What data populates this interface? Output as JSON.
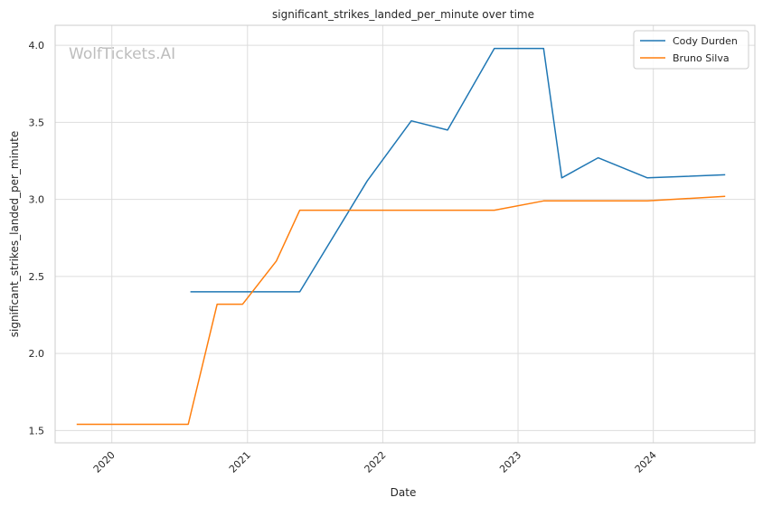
{
  "chart_data": {
    "type": "line",
    "title": "significant_strikes_landed_per_minute over time",
    "xlabel": "Date",
    "ylabel": "significant_strikes_landed_per_minute",
    "watermark": "WolfTickets.AI",
    "x_type": "date",
    "xlim": [
      "2019-08-01",
      "2024-10-01"
    ],
    "ylim": [
      1.42,
      4.13
    ],
    "x_ticks": [
      {
        "label": "2020",
        "date": "2020-01-01"
      },
      {
        "label": "2021",
        "date": "2021-01-01"
      },
      {
        "label": "2022",
        "date": "2022-01-01"
      },
      {
        "label": "2023",
        "date": "2023-01-01"
      },
      {
        "label": "2024",
        "date": "2024-01-01"
      }
    ],
    "y_ticks": [
      "1.5",
      "2.0",
      "2.5",
      "3.0",
      "3.5",
      "4.0"
    ],
    "grid": true,
    "legend_position": "top-right",
    "series": [
      {
        "name": "Cody Durden",
        "color": "#1f77b4",
        "points": [
          {
            "x": "2020-07-31",
            "y": 2.4
          },
          {
            "x": "2021-05-22",
            "y": 2.4
          },
          {
            "x": "2021-11-20",
            "y": 3.12
          },
          {
            "x": "2022-03-19",
            "y": 3.51
          },
          {
            "x": "2022-06-25",
            "y": 3.45
          },
          {
            "x": "2022-10-29",
            "y": 3.98
          },
          {
            "x": "2023-03-11",
            "y": 3.98
          },
          {
            "x": "2023-04-29",
            "y": 3.14
          },
          {
            "x": "2023-08-05",
            "y": 3.27
          },
          {
            "x": "2023-12-16",
            "y": 3.14
          },
          {
            "x": "2024-07-13",
            "y": 3.16
          }
        ]
      },
      {
        "name": "Bruno Silva",
        "color": "#ff7f0e",
        "points": [
          {
            "x": "2019-09-28",
            "y": 1.54
          },
          {
            "x": "2020-07-25",
            "y": 1.54
          },
          {
            "x": "2020-10-11",
            "y": 2.32
          },
          {
            "x": "2020-12-19",
            "y": 2.32
          },
          {
            "x": "2021-03-20",
            "y": 2.6
          },
          {
            "x": "2021-05-22",
            "y": 2.93
          },
          {
            "x": "2022-10-29",
            "y": 2.93
          },
          {
            "x": "2023-03-11",
            "y": 2.99
          },
          {
            "x": "2023-12-16",
            "y": 2.99
          },
          {
            "x": "2024-07-13",
            "y": 3.02
          }
        ]
      }
    ]
  }
}
